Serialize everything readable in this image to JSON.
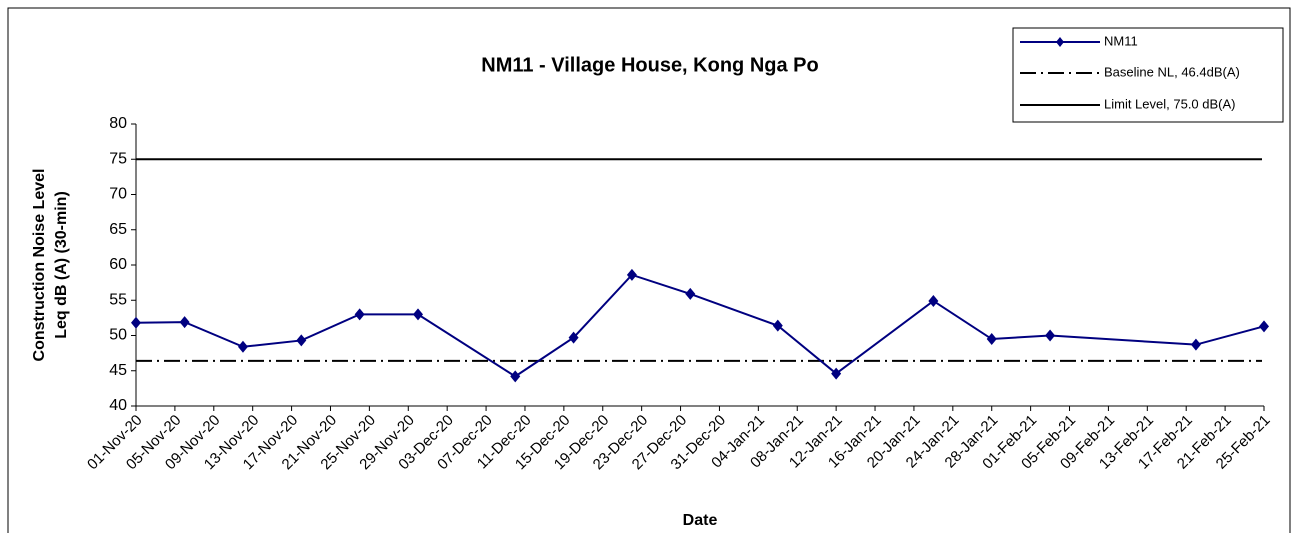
{
  "chart_data": {
    "type": "line",
    "title": "NM11 - Village House, Kong Nga Po",
    "x_label": "Date",
    "y_label": [
      "Construction Noise Level",
      "Leq dB (A) (30-min)"
    ],
    "x": [
      "01-Nov-20",
      "06-Nov-20",
      "12-Nov-20",
      "18-Nov-20",
      "24-Nov-20",
      "30-Nov-20",
      "10-Dec-20",
      "16-Dec-20",
      "22-Dec-20",
      "28-Dec-20",
      "06-Jan-21",
      "12-Jan-21",
      "22-Jan-21",
      "28-Jan-21",
      "03-Feb-21",
      "18-Feb-21",
      "25-Feb-21"
    ],
    "series": [
      {
        "name": "NM11",
        "color": "#000080",
        "values": [
          51.8,
          51.9,
          48.4,
          49.3,
          53.0,
          53.0,
          44.2,
          49.7,
          58.6,
          55.9,
          51.4,
          44.6,
          54.9,
          49.5,
          50.0,
          48.7,
          51.3
        ]
      }
    ],
    "reference_lines": [
      {
        "name": "Baseline NL,  46.4dB(A)",
        "value": 46.4,
        "color": "#000000",
        "style": "dashdot"
      },
      {
        "name": "Limit Level, 75.0 dB(A)",
        "value": 75.0,
        "color": "#000000",
        "style": "solid"
      }
    ],
    "xlim": [
      "01-Nov-20",
      "25-Feb-21"
    ],
    "xticks": [
      "01-Nov-20",
      "05-Nov-20",
      "09-Nov-20",
      "13-Nov-20",
      "17-Nov-20",
      "21-Nov-20",
      "25-Nov-20",
      "29-Nov-20",
      "03-Dec-20",
      "07-Dec-20",
      "11-Dec-20",
      "15-Dec-20",
      "19-Dec-20",
      "23-Dec-20",
      "27-Dec-20",
      "31-Dec-20",
      "04-Jan-21",
      "08-Jan-21",
      "12-Jan-21",
      "16-Jan-21",
      "20-Jan-21",
      "24-Jan-21",
      "28-Jan-21",
      "01-Feb-21",
      "05-Feb-21",
      "09-Feb-21",
      "13-Feb-21",
      "17-Feb-21",
      "21-Feb-21",
      "25-Feb-21"
    ],
    "ylim": [
      40,
      80
    ],
    "yticks": [
      40,
      45,
      50,
      55,
      60,
      65,
      70,
      75,
      80
    ],
    "legend": "top-right"
  }
}
